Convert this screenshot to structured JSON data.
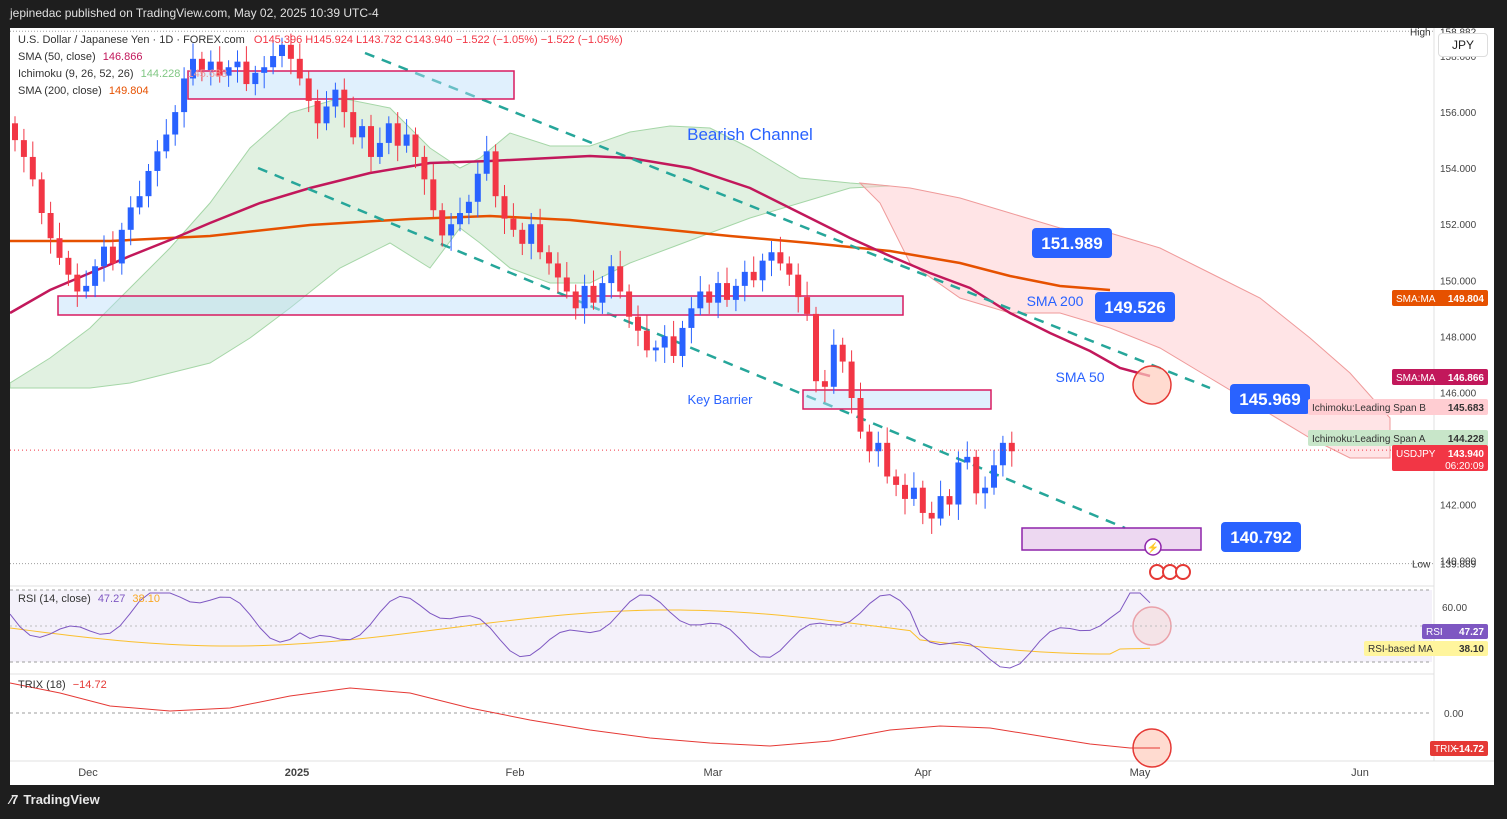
{
  "header": {
    "publisher": "jepinedac published on TradingView.com, May 02, 2025 10:39 UTC-4"
  },
  "legend": {
    "symbol": "U.S. Dollar / Japanese Yen · 1D · FOREX.com",
    "ohlc": "O145.396  H145.924  L143.732  C143.940  −1.522 (−1.05%)  −1.522 (−1.05%)",
    "sma50": "SMA (50, close)",
    "sma50_val": "146.866",
    "ichimoku": "Ichimoku (9, 26, 52, 26)",
    "ichimoku_a": "144.228",
    "ichimoku_b": "145.683",
    "sma200": "SMA (200, close)",
    "sma200_val": "149.804",
    "rsi": "RSI (14, close)",
    "rsi_val": "47.27",
    "rsi_ma_val": "38.10",
    "trix": "TRIX (18)",
    "trix_val": "−14.72"
  },
  "currency": "JPY",
  "footer": {
    "brand": "TradingView"
  },
  "colors": {
    "up": "#2962ff",
    "down": "#f23645",
    "sma50": "#c2185b",
    "sma200": "#e65100",
    "cloud_bull": "#c8e6c9",
    "cloud_bear": "#ffcdd2",
    "rsi": "#7e57c2",
    "rsi_ma": "#fbc02d",
    "trix": "#e53935",
    "callout": "#2962ff"
  },
  "chart_data": [
    {
      "type": "candlestick",
      "title": "U.S. Dollar / Japanese Yen · 1D · FOREX.com",
      "ylim": [
        139.2,
        159.0
      ],
      "y_ticks": [
        "158.000",
        "156.000",
        "154.000",
        "152.000",
        "150.000",
        "148.000",
        "146.000",
        "144.000",
        "142.000",
        "140.000"
      ],
      "x_ticks": [
        "Dec",
        "2025",
        "Feb",
        "Mar",
        "Apr",
        "May",
        "Jun"
      ],
      "ohlc_closes": [
        155.0,
        154.4,
        153.6,
        152.4,
        151.5,
        150.8,
        150.2,
        149.6,
        149.8,
        150.5,
        151.2,
        150.6,
        151.8,
        152.6,
        153.0,
        153.9,
        154.6,
        155.2,
        156.0,
        157.2,
        157.9,
        157.5,
        157.8,
        157.3,
        157.6,
        157.8,
        157.0,
        157.4,
        157.6,
        158.0,
        158.4,
        157.9,
        157.2,
        156.4,
        155.6,
        156.2,
        156.8,
        156.0,
        155.1,
        155.5,
        154.4,
        154.9,
        155.6,
        154.8,
        155.2,
        154.4,
        153.6,
        152.5,
        151.6,
        152.0,
        152.4,
        152.8,
        153.8,
        154.6,
        153.0,
        152.2,
        151.8,
        151.3,
        152.0,
        151.0,
        150.6,
        150.1,
        149.6,
        149.0,
        149.8,
        149.2,
        149.9,
        150.5,
        149.6,
        148.7,
        148.2,
        147.5,
        147.6,
        148.0,
        147.3,
        148.3,
        149.0,
        149.6,
        149.2,
        149.9,
        149.3,
        149.8,
        150.3,
        150.0,
        150.7,
        151.0,
        150.6,
        150.2,
        149.4,
        148.8,
        146.4,
        146.2,
        147.7,
        147.1,
        145.8,
        144.6,
        143.9,
        144.2,
        143.0,
        142.7,
        142.2,
        142.6,
        141.7,
        141.5,
        142.3,
        142.0,
        143.5,
        143.7,
        142.4,
        142.6,
        143.4,
        144.2,
        143.9
      ],
      "levels": [
        {
          "label": "151.989",
          "value": 151.989
        },
        {
          "label": "149.526",
          "value": 149.526
        },
        {
          "label": "145.969",
          "value": 145.969
        },
        {
          "label": "140.792",
          "value": 140.792
        }
      ],
      "high": {
        "label": "High",
        "value": "158.882"
      },
      "low": {
        "label": "Low",
        "value": "139.889"
      },
      "series_tags": [
        {
          "name": "SMA:MA",
          "value": "149.804",
          "color": "#e65100"
        },
        {
          "name": "SMA:MA",
          "value": "146.866",
          "color": "#c2185b"
        },
        {
          "name": "Ichimoku:Leading Span B",
          "value": "145.683",
          "color": "#ffcdd2"
        },
        {
          "name": "Ichimoku:Leading Span A",
          "value": "144.228",
          "color": "#c8e6c9"
        },
        {
          "name": "USDJPY",
          "value": "143.940",
          "color": "#f23645",
          "sub": "06:20:09"
        }
      ],
      "annotations": [
        "Bearish Channel",
        "SMA 200",
        "SMA 50",
        "Key Barrier"
      ]
    },
    {
      "type": "line",
      "title": "RSI (14, close)",
      "ylim": [
        20,
        75
      ],
      "y_ticks": [
        "60.00"
      ],
      "series": [
        {
          "name": "RSI",
          "last": 47.27
        },
        {
          "name": "RSI-based MA",
          "last": 38.1
        }
      ],
      "tags": [
        {
          "name": "RSI",
          "value": "47.27"
        },
        {
          "name": "RSI-based MA",
          "value": "38.10"
        }
      ]
    },
    {
      "type": "line",
      "title": "TRIX (18)",
      "y_ticks": [
        "0.00"
      ],
      "series": [
        {
          "name": "TRIX",
          "last": -14.72
        }
      ],
      "tags": [
        {
          "name": "TRIX",
          "value": "−14.72"
        }
      ]
    }
  ]
}
